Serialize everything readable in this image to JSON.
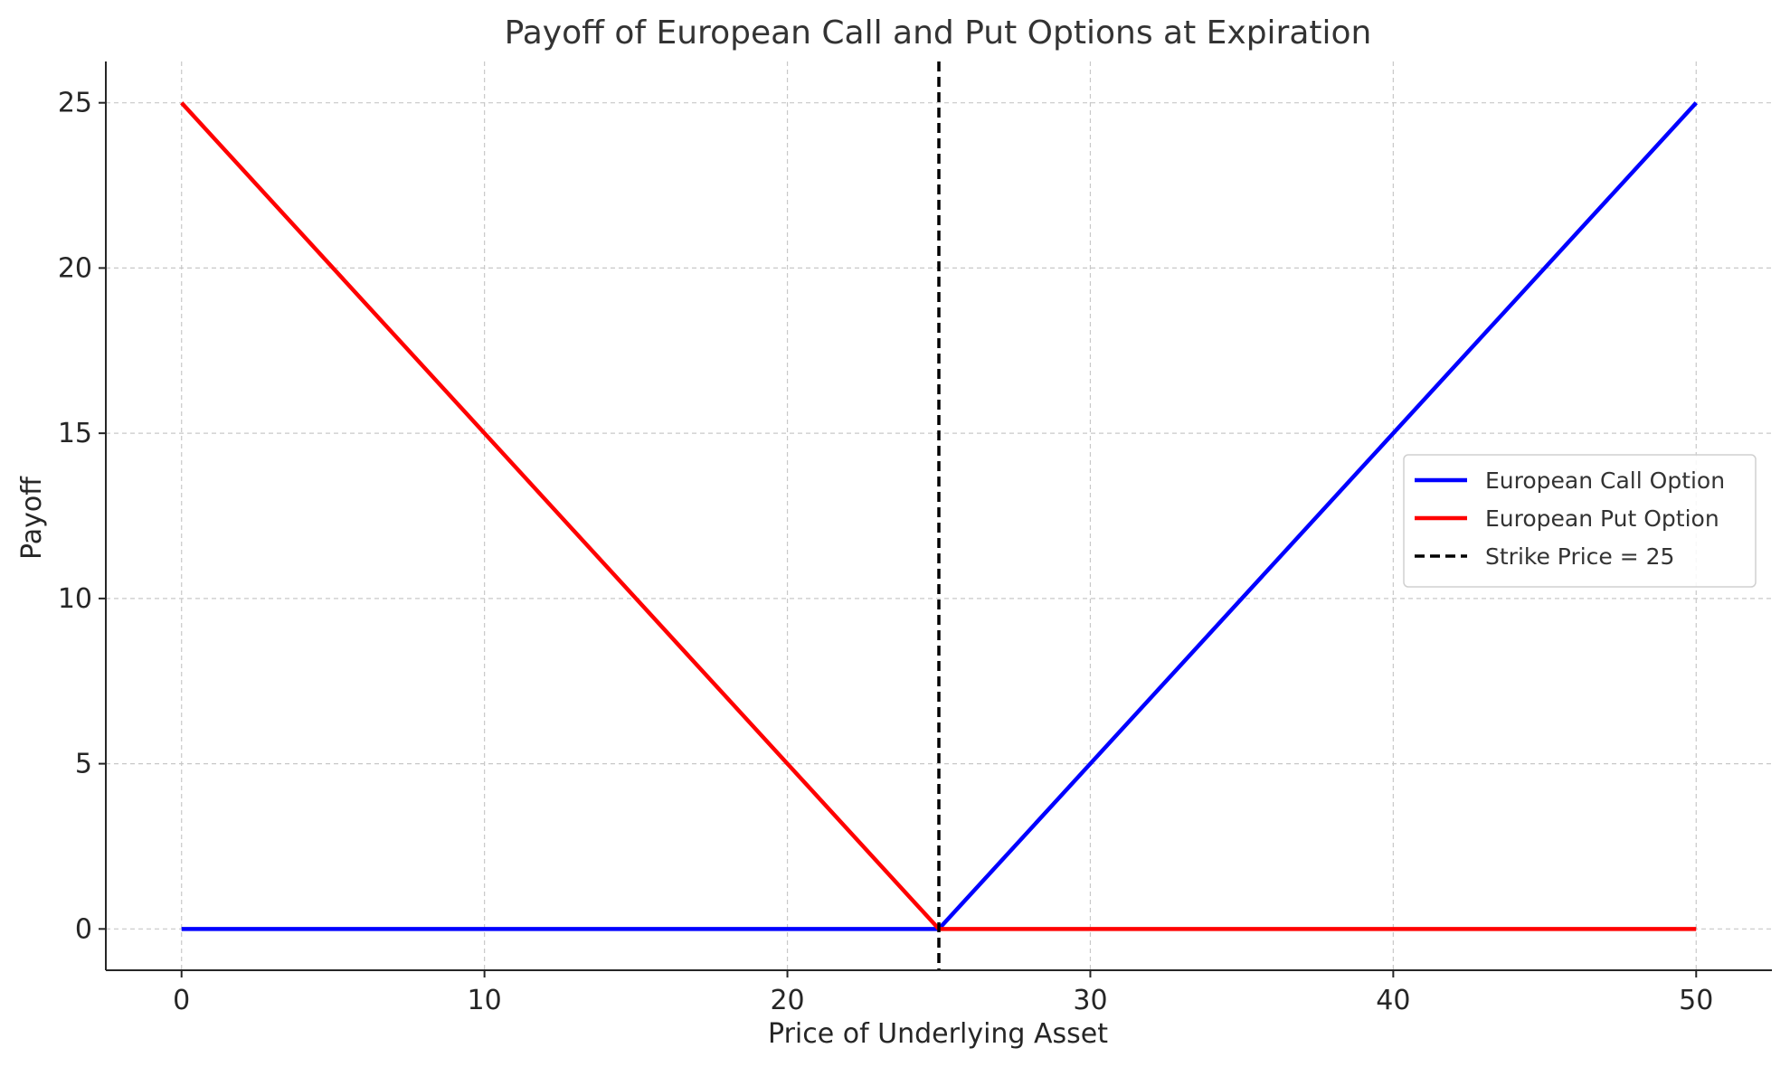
{
  "chart_data": {
    "type": "line",
    "title": "Payoff of European Call and Put Options at Expiration",
    "xlabel": "Price of Underlying Asset",
    "ylabel": "Payoff",
    "xlim": [
      -2.5,
      52.5
    ],
    "ylim": [
      -1.25,
      26.25
    ],
    "xticks": [
      0,
      10,
      20,
      30,
      40,
      50
    ],
    "yticks": [
      0,
      5,
      10,
      15,
      20,
      25
    ],
    "grid": true,
    "legend_position": "center-right",
    "series": [
      {
        "name": "European Call Option",
        "color": "#0000ff",
        "style": "solid",
        "x": [
          0,
          25,
          50
        ],
        "y": [
          0,
          0,
          25
        ]
      },
      {
        "name": "European Put Option",
        "color": "#ff0000",
        "style": "solid",
        "x": [
          0,
          25,
          50
        ],
        "y": [
          25,
          0,
          0
        ]
      }
    ],
    "vlines": [
      {
        "name": "Strike Price = 25",
        "x": 25,
        "color": "#000000",
        "style": "dashed"
      }
    ]
  }
}
